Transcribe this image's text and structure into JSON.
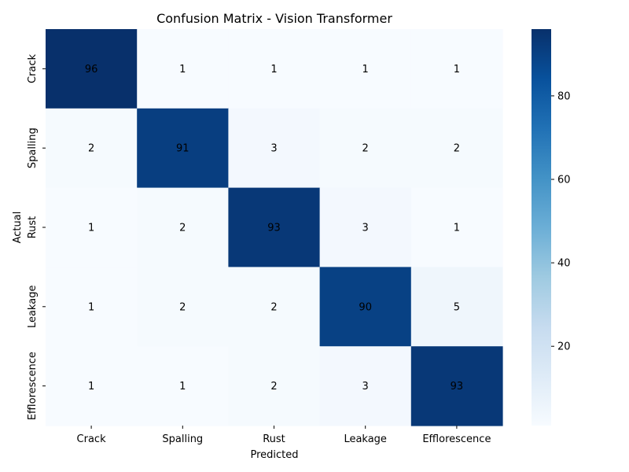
{
  "chart_data": {
    "type": "heatmap",
    "title": "Confusion Matrix - Vision Transformer",
    "xlabel": "Predicted",
    "ylabel": "Actual",
    "x_categories": [
      "Crack",
      "Spalling",
      "Rust",
      "Leakage",
      "Efflorescence"
    ],
    "y_categories": [
      "Crack",
      "Spalling",
      "Rust",
      "Leakage",
      "Efflorescence"
    ],
    "values": [
      [
        96,
        1,
        1,
        1,
        1
      ],
      [
        2,
        91,
        3,
        2,
        2
      ],
      [
        1,
        2,
        93,
        3,
        1
      ],
      [
        1,
        2,
        2,
        90,
        5
      ],
      [
        1,
        1,
        2,
        3,
        93
      ]
    ],
    "colormap": "Blues",
    "color_range": [
      1,
      96
    ],
    "colorbar_ticks": [
      20,
      40,
      60,
      80
    ],
    "annotation_colors": {
      "light": "#ffffff",
      "dark": "#262626"
    }
  }
}
